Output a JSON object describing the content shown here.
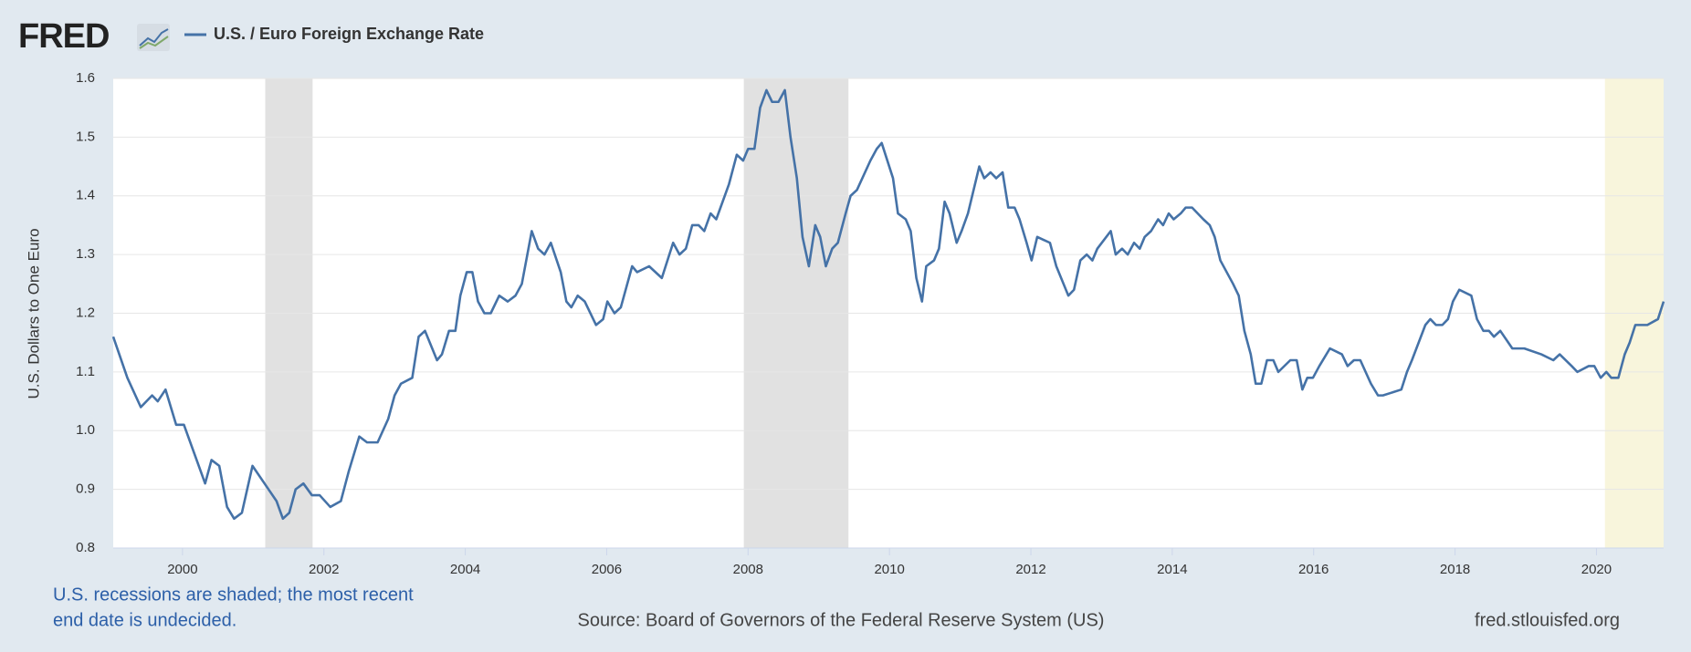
{
  "chart_data": {
    "type": "line",
    "logo": "FRED",
    "ylabel": "U.S. Dollars to One Euro",
    "note": [
      "U.S. recessions are shaded; the most recent",
      "end date is undecided."
    ],
    "source": "Source: Board of Governors of the Federal Reserve System (US)",
    "site": "fred.stlouisfed.org",
    "xlim": [
      1999.02,
      2020.95
    ],
    "xticks": [
      2000,
      2002,
      2004,
      2006,
      2008,
      2010,
      2012,
      2014,
      2016,
      2018,
      2020
    ],
    "ylim": [
      0.8,
      1.6
    ],
    "yticks": [
      {
        "value": 0.8,
        "label": "0.8"
      },
      {
        "value": 0.9,
        "label": "0.9"
      },
      {
        "value": 1.0,
        "label": "1.0"
      },
      {
        "value": 1.1,
        "label": "1.1"
      },
      {
        "value": 1.2,
        "label": "1.2"
      },
      {
        "value": 1.3,
        "label": "1.3"
      },
      {
        "value": 1.4,
        "label": "1.4"
      },
      {
        "value": 1.5,
        "label": "1.5"
      },
      {
        "value": 1.6,
        "label": "1.6"
      }
    ],
    "grid": true,
    "recessions": [
      {
        "start": 2001.17,
        "end": 2001.84,
        "color": "#e1e1e1"
      },
      {
        "start": 2007.94,
        "end": 2009.42,
        "color": "#e1e1e1"
      },
      {
        "start": 2020.12,
        "end": 2020.95,
        "color": "#f8f5dc"
      }
    ],
    "x": [
      1999.02,
      1999.22,
      1999.41,
      1999.57,
      1999.65,
      1999.76,
      1999.91,
      2000.02,
      2000.2,
      2000.32,
      2000.41,
      2000.52,
      2000.63,
      2000.73,
      2000.84,
      2000.99,
      2001.16,
      2001.33,
      2001.42,
      2001.51,
      2001.6,
      2001.71,
      2001.83,
      2001.94,
      2002.09,
      2002.24,
      2002.35,
      2002.5,
      2002.61,
      2002.76,
      2002.91,
      2003.0,
      2003.09,
      2003.25,
      2003.34,
      2003.43,
      2003.6,
      2003.67,
      2003.77,
      2003.86,
      2003.93,
      2004.02,
      2004.1,
      2004.18,
      2004.27,
      2004.36,
      2004.48,
      2004.6,
      2004.71,
      2004.8,
      2004.94,
      2005.03,
      2005.12,
      2005.21,
      2005.35,
      2005.43,
      2005.5,
      2005.59,
      2005.69,
      2005.85,
      2005.95,
      2006.01,
      2006.11,
      2006.2,
      2006.36,
      2006.43,
      2006.6,
      2006.78,
      2006.94,
      2007.03,
      2007.12,
      2007.21,
      2007.3,
      2007.38,
      2007.47,
      2007.55,
      2007.73,
      2007.84,
      2007.93,
      2008.0,
      2008.09,
      2008.17,
      2008.26,
      2008.34,
      2008.43,
      2008.52,
      2008.6,
      2008.69,
      2008.77,
      2008.86,
      2008.95,
      2009.02,
      2009.1,
      2009.19,
      2009.27,
      2009.38,
      2009.45,
      2009.54,
      2009.73,
      2009.82,
      2009.89,
      2010.05,
      2010.12,
      2010.23,
      2010.3,
      2010.38,
      2010.46,
      2010.52,
      2010.63,
      2010.7,
      2010.78,
      2010.85,
      2010.95,
      2011.02,
      2011.11,
      2011.27,
      2011.34,
      2011.43,
      2011.51,
      2011.6,
      2011.68,
      2011.77,
      2011.84,
      2011.94,
      2012.01,
      2012.09,
      2012.27,
      2012.36,
      2012.53,
      2012.61,
      2012.7,
      2012.79,
      2012.87,
      2012.94,
      2013.13,
      2013.2,
      2013.29,
      2013.37,
      2013.46,
      2013.54,
      2013.61,
      2013.7,
      2013.8,
      2013.87,
      2013.95,
      2014.02,
      2014.12,
      2014.19,
      2014.28,
      2014.44,
      2014.53,
      2014.6,
      2014.68,
      2014.86,
      2014.94,
      2015.02,
      2015.11,
      2015.18,
      2015.26,
      2015.34,
      2015.43,
      2015.5,
      2015.67,
      2015.76,
      2015.84,
      2015.91,
      2015.99,
      2016.08,
      2016.23,
      2016.4,
      2016.48,
      2016.57,
      2016.66,
      2016.81,
      2016.91,
      2016.98,
      2017.24,
      2017.32,
      2017.39,
      2017.58,
      2017.65,
      2017.73,
      2017.82,
      2017.9,
      2017.97,
      2018.06,
      2018.23,
      2018.31,
      2018.4,
      2018.48,
      2018.55,
      2018.64,
      2018.81,
      2018.98,
      2019.22,
      2019.39,
      2019.48,
      2019.65,
      2019.73,
      2019.89,
      2019.97,
      2020.06,
      2020.14,
      2020.21,
      2020.31,
      2020.4,
      2020.47,
      2020.55,
      2020.72,
      2020.87,
      2020.95
    ],
    "series": [
      {
        "name": "U.S. / Euro Foreign Exchange Rate",
        "color": "#4572a7",
        "values": [
          1.16,
          1.09,
          1.04,
          1.06,
          1.05,
          1.07,
          1.01,
          1.01,
          0.95,
          0.91,
          0.95,
          0.94,
          0.87,
          0.85,
          0.86,
          0.94,
          0.91,
          0.88,
          0.85,
          0.86,
          0.9,
          0.91,
          0.89,
          0.89,
          0.87,
          0.88,
          0.93,
          0.99,
          0.98,
          0.98,
          1.02,
          1.06,
          1.08,
          1.09,
          1.16,
          1.17,
          1.12,
          1.13,
          1.17,
          1.17,
          1.23,
          1.27,
          1.27,
          1.22,
          1.2,
          1.2,
          1.23,
          1.22,
          1.23,
          1.25,
          1.34,
          1.31,
          1.3,
          1.32,
          1.27,
          1.22,
          1.21,
          1.23,
          1.22,
          1.18,
          1.19,
          1.22,
          1.2,
          1.21,
          1.28,
          1.27,
          1.28,
          1.26,
          1.32,
          1.3,
          1.31,
          1.35,
          1.35,
          1.34,
          1.37,
          1.36,
          1.42,
          1.47,
          1.46,
          1.48,
          1.48,
          1.55,
          1.58,
          1.56,
          1.56,
          1.58,
          1.5,
          1.43,
          1.33,
          1.28,
          1.35,
          1.33,
          1.28,
          1.31,
          1.32,
          1.37,
          1.4,
          1.41,
          1.46,
          1.48,
          1.49,
          1.43,
          1.37,
          1.36,
          1.34,
          1.26,
          1.22,
          1.28,
          1.29,
          1.31,
          1.39,
          1.37,
          1.32,
          1.34,
          1.37,
          1.45,
          1.43,
          1.44,
          1.43,
          1.44,
          1.38,
          1.38,
          1.36,
          1.32,
          1.29,
          1.33,
          1.32,
          1.28,
          1.23,
          1.24,
          1.29,
          1.3,
          1.29,
          1.31,
          1.34,
          1.3,
          1.31,
          1.3,
          1.32,
          1.31,
          1.33,
          1.34,
          1.36,
          1.35,
          1.37,
          1.36,
          1.37,
          1.38,
          1.38,
          1.36,
          1.35,
          1.33,
          1.29,
          1.25,
          1.23,
          1.17,
          1.13,
          1.08,
          1.08,
          1.12,
          1.12,
          1.1,
          1.12,
          1.12,
          1.07,
          1.09,
          1.09,
          1.11,
          1.14,
          1.13,
          1.11,
          1.12,
          1.12,
          1.08,
          1.06,
          1.06,
          1.07,
          1.1,
          1.12,
          1.18,
          1.19,
          1.18,
          1.18,
          1.19,
          1.22,
          1.24,
          1.23,
          1.19,
          1.17,
          1.17,
          1.16,
          1.17,
          1.14,
          1.14,
          1.13,
          1.12,
          1.13,
          1.11,
          1.1,
          1.11,
          1.11,
          1.09,
          1.1,
          1.09,
          1.09,
          1.13,
          1.15,
          1.18,
          1.18,
          1.19,
          1.22
        ]
      }
    ]
  }
}
